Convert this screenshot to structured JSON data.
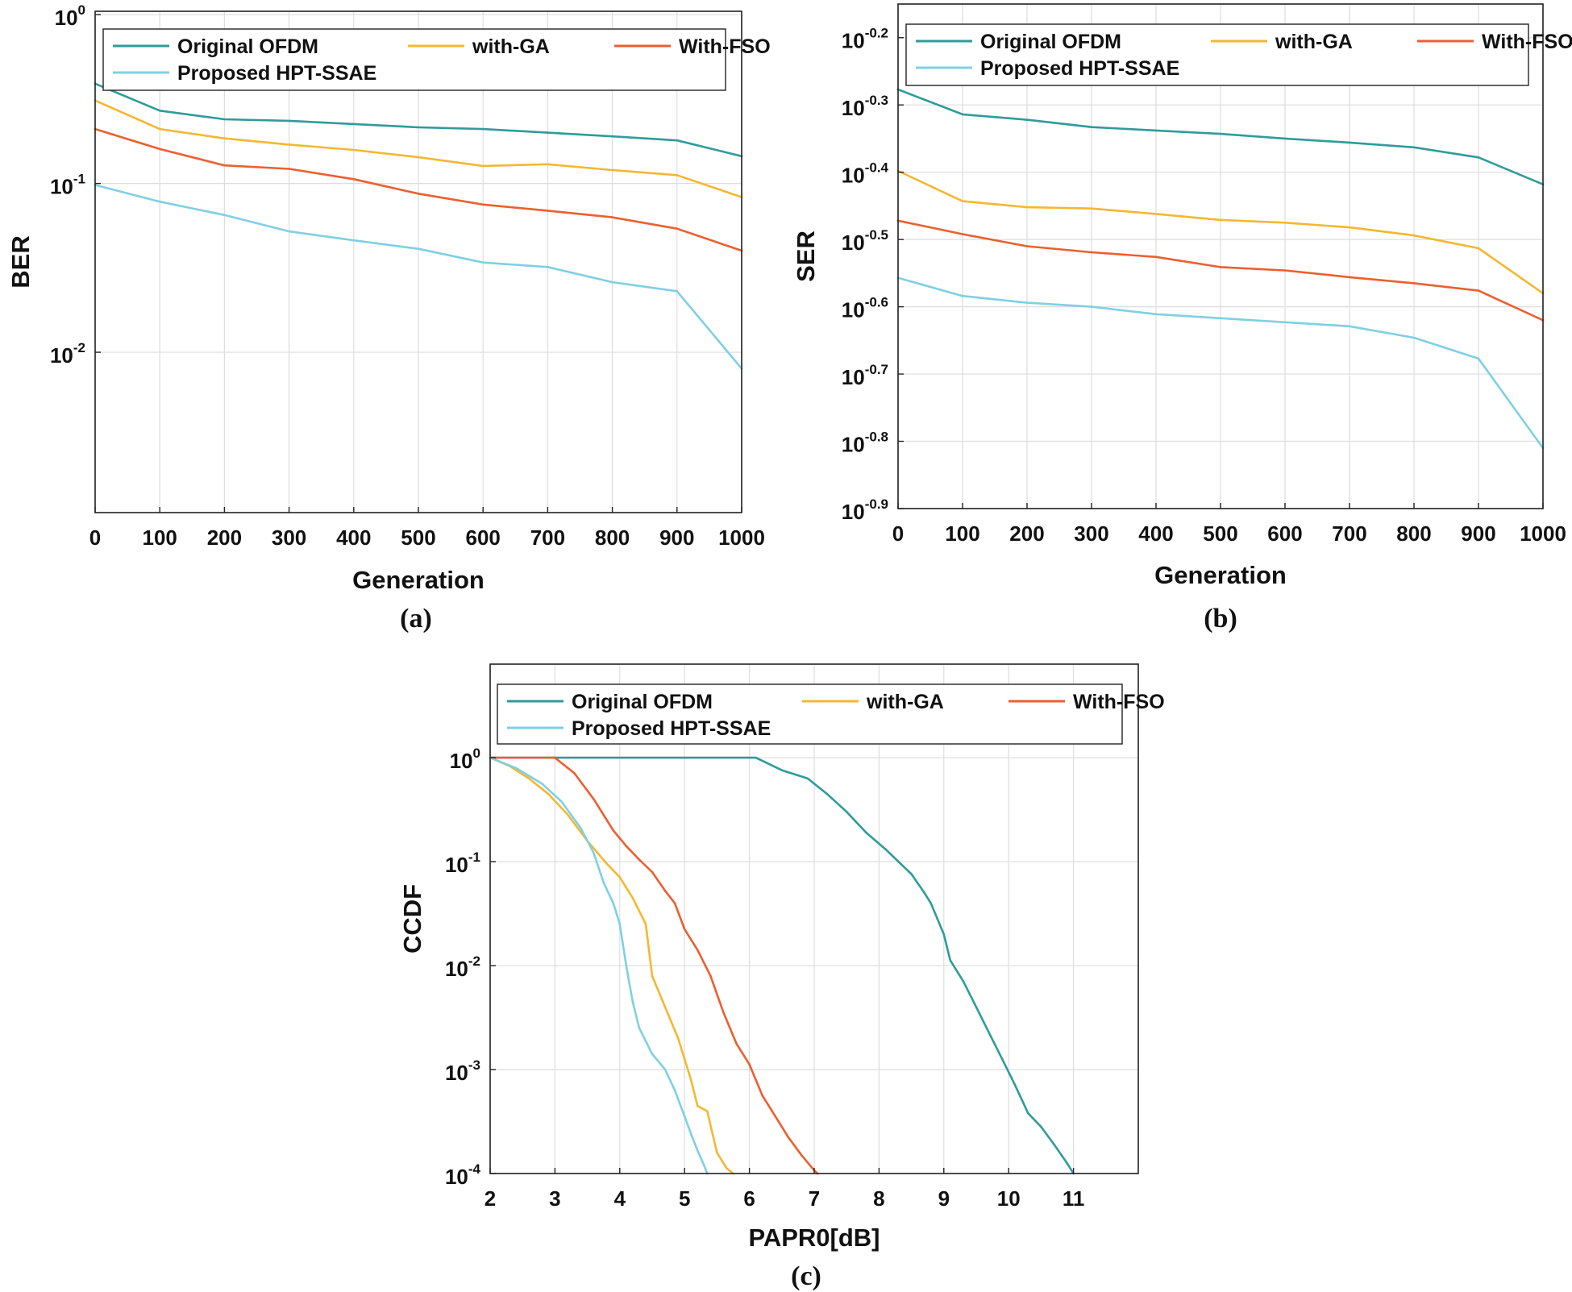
{
  "colors": {
    "original_ofdm": "#2e9c9a",
    "with_ga": "#f5b731",
    "with_fso": "#ec5f2f",
    "proposed": "#7fd0e2"
  },
  "chart_data": [
    {
      "id": "a",
      "type": "line",
      "yscale": "log",
      "caption": "(a)",
      "xlabel": "Generation",
      "ylabel": "BER",
      "xlim": [
        0,
        1000
      ],
      "ylim_log10": [
        -2.95,
        0.02
      ],
      "xticks": [
        "0",
        "100",
        "200",
        "300",
        "400",
        "500",
        "600",
        "700",
        "800",
        "900",
        "1000"
      ],
      "yticks": [
        {
          "base": "10",
          "exp": "-2"
        },
        {
          "base": "10",
          "exp": "-1"
        },
        {
          "base": "10",
          "exp": "0"
        }
      ],
      "grid": true,
      "legend": "top-left",
      "legend_entries": [
        "Original OFDM",
        "with-GA",
        "With-FSO",
        "Proposed HPT-SSAE"
      ],
      "x": [
        0,
        100,
        200,
        300,
        400,
        500,
        600,
        700,
        800,
        900,
        1000
      ],
      "series": [
        {
          "name": "Original OFDM",
          "color_key": "original_ofdm",
          "values": [
            0.39,
            0.27,
            0.24,
            0.235,
            0.225,
            0.215,
            0.21,
            0.2,
            0.19,
            0.18,
            0.145
          ]
        },
        {
          "name": "with-GA",
          "color_key": "with_ga",
          "values": [
            0.31,
            0.21,
            0.185,
            0.17,
            0.158,
            0.143,
            0.127,
            0.13,
            0.12,
            0.112,
            0.083
          ]
        },
        {
          "name": "With-FSO",
          "color_key": "with_fso",
          "values": [
            0.21,
            0.16,
            0.128,
            0.122,
            0.106,
            0.087,
            0.075,
            0.069,
            0.063,
            0.054,
            0.04
          ]
        },
        {
          "name": "Proposed HPT-SSAE",
          "color_key": "proposed",
          "values": [
            0.098,
            0.078,
            0.065,
            0.052,
            0.046,
            0.041,
            0.034,
            0.032,
            0.026,
            0.023,
            0.008
          ]
        }
      ]
    },
    {
      "id": "b",
      "type": "line",
      "yscale": "log",
      "caption": "(b)",
      "xlabel": "Generation",
      "ylabel": "SER",
      "xlim": [
        0,
        1000
      ],
      "ylim_log10": [
        -0.9,
        -0.15
      ],
      "xticks": [
        "0",
        "100",
        "200",
        "300",
        "400",
        "500",
        "600",
        "700",
        "800",
        "900",
        "1000"
      ],
      "yticks": [
        {
          "base": "10",
          "exp": "-0.9"
        },
        {
          "base": "10",
          "exp": "-0.8"
        },
        {
          "base": "10",
          "exp": "-0.7"
        },
        {
          "base": "10",
          "exp": "-0.6"
        },
        {
          "base": "10",
          "exp": "-0.5"
        },
        {
          "base": "10",
          "exp": "-0.4"
        },
        {
          "base": "10",
          "exp": "-0.3"
        },
        {
          "base": "10",
          "exp": "-0.2"
        }
      ],
      "grid": true,
      "legend": "top-left",
      "legend_entries": [
        "Original OFDM",
        "with-GA",
        "With-FSO",
        "Proposed HPT-SSAE"
      ],
      "x": [
        0,
        100,
        200,
        300,
        400,
        500,
        600,
        700,
        800,
        900,
        1000
      ],
      "series": [
        {
          "name": "Original OFDM",
          "color_key": "original_ofdm",
          "log10_values": [
            -0.277,
            -0.314,
            -0.322,
            -0.333,
            -0.338,
            -0.343,
            -0.35,
            -0.356,
            -0.363,
            -0.378,
            -0.418
          ]
        },
        {
          "name": "with-GA",
          "color_key": "with_ga",
          "log10_values": [
            -0.398,
            -0.443,
            -0.452,
            -0.454,
            -0.462,
            -0.471,
            -0.475,
            -0.482,
            -0.494,
            -0.513,
            -0.58
          ]
        },
        {
          "name": "With-FSO",
          "color_key": "with_fso",
          "log10_values": [
            -0.472,
            -0.492,
            -0.51,
            -0.519,
            -0.526,
            -0.541,
            -0.546,
            -0.556,
            -0.565,
            -0.576,
            -0.62
          ]
        },
        {
          "name": "Proposed HPT-SSAE",
          "color_key": "proposed",
          "log10_values": [
            -0.557,
            -0.584,
            -0.594,
            -0.6,
            -0.611,
            -0.617,
            -0.623,
            -0.629,
            -0.646,
            -0.677,
            -0.81
          ]
        }
      ]
    },
    {
      "id": "c",
      "type": "line",
      "yscale": "log",
      "caption": "(c)",
      "xlabel": "PAPR0[dB]",
      "ylabel": "CCDF",
      "xlim": [
        2,
        12
      ],
      "ylim_log10": [
        -4.0,
        0.9
      ],
      "xticks": [
        "2",
        "3",
        "4",
        "5",
        "6",
        "7",
        "8",
        "9",
        "10",
        "11"
      ],
      "yticks": [
        {
          "base": "10",
          "exp": "-4"
        },
        {
          "base": "10",
          "exp": "-3"
        },
        {
          "base": "10",
          "exp": "-2"
        },
        {
          "base": "10",
          "exp": "-1"
        },
        {
          "base": "10",
          "exp": "0"
        }
      ],
      "grid": true,
      "legend": "top",
      "legend_entries": [
        "Original OFDM",
        "with-GA",
        "With-FSO",
        "Proposed HPT-SSAE"
      ],
      "series": [
        {
          "name": "Original OFDM",
          "color_key": "original_ofdm",
          "x": [
            2.0,
            5.0,
            6.1,
            6.5,
            6.9,
            7.2,
            7.5,
            7.8,
            8.1,
            8.3,
            8.5,
            8.7,
            8.8,
            8.9,
            9.0,
            9.1,
            9.3,
            9.5,
            9.7,
            9.9,
            10.1,
            10.3,
            10.5,
            10.7,
            10.9,
            11.0
          ],
          "log10_values": [
            0.0,
            0.0,
            0.0,
            -0.12,
            -0.2,
            -0.35,
            -0.52,
            -0.72,
            -0.88,
            -1.0,
            -1.12,
            -1.3,
            -1.4,
            -1.55,
            -1.7,
            -1.95,
            -2.15,
            -2.4,
            -2.65,
            -2.9,
            -3.15,
            -3.42,
            -3.55,
            -3.72,
            -3.9,
            -4.0
          ]
        },
        {
          "name": "with-GA",
          "color_key": "with_ga",
          "x": [
            2.0,
            2.3,
            2.6,
            2.9,
            3.2,
            3.5,
            3.8,
            4.0,
            4.2,
            4.4,
            4.5,
            4.7,
            4.9,
            5.0,
            5.1,
            5.2,
            5.35,
            5.5,
            5.65,
            5.75
          ],
          "log10_values": [
            0.0,
            -0.08,
            -0.2,
            -0.35,
            -0.55,
            -0.8,
            -1.02,
            -1.15,
            -1.35,
            -1.6,
            -2.1,
            -2.4,
            -2.7,
            -2.9,
            -3.1,
            -3.35,
            -3.4,
            -3.8,
            -3.95,
            -4.0
          ]
        },
        {
          "name": "With-FSO",
          "color_key": "with_fso",
          "x": [
            2.0,
            3.0,
            3.3,
            3.6,
            3.9,
            4.1,
            4.3,
            4.5,
            4.7,
            4.85,
            5.0,
            5.2,
            5.4,
            5.6,
            5.8,
            6.0,
            6.2,
            6.4,
            6.6,
            6.8,
            7.0,
            7.05
          ],
          "log10_values": [
            0.0,
            0.0,
            -0.15,
            -0.4,
            -0.7,
            -0.85,
            -0.98,
            -1.1,
            -1.28,
            -1.4,
            -1.65,
            -1.85,
            -2.1,
            -2.45,
            -2.75,
            -2.95,
            -3.25,
            -3.45,
            -3.65,
            -3.82,
            -3.97,
            -4.0
          ]
        },
        {
          "name": "Proposed HPT-SSAE",
          "color_key": "proposed",
          "x": [
            2.0,
            2.4,
            2.8,
            3.1,
            3.4,
            3.6,
            3.75,
            3.9,
            4.0,
            4.1,
            4.2,
            4.3,
            4.5,
            4.7,
            4.85,
            5.0,
            5.1,
            5.2,
            5.3,
            5.35
          ],
          "log10_values": [
            0.0,
            -0.1,
            -0.25,
            -0.42,
            -0.68,
            -0.92,
            -1.2,
            -1.4,
            -1.6,
            -2.0,
            -2.35,
            -2.6,
            -2.85,
            -3.0,
            -3.2,
            -3.45,
            -3.62,
            -3.78,
            -3.92,
            -4.0
          ]
        }
      ]
    }
  ]
}
